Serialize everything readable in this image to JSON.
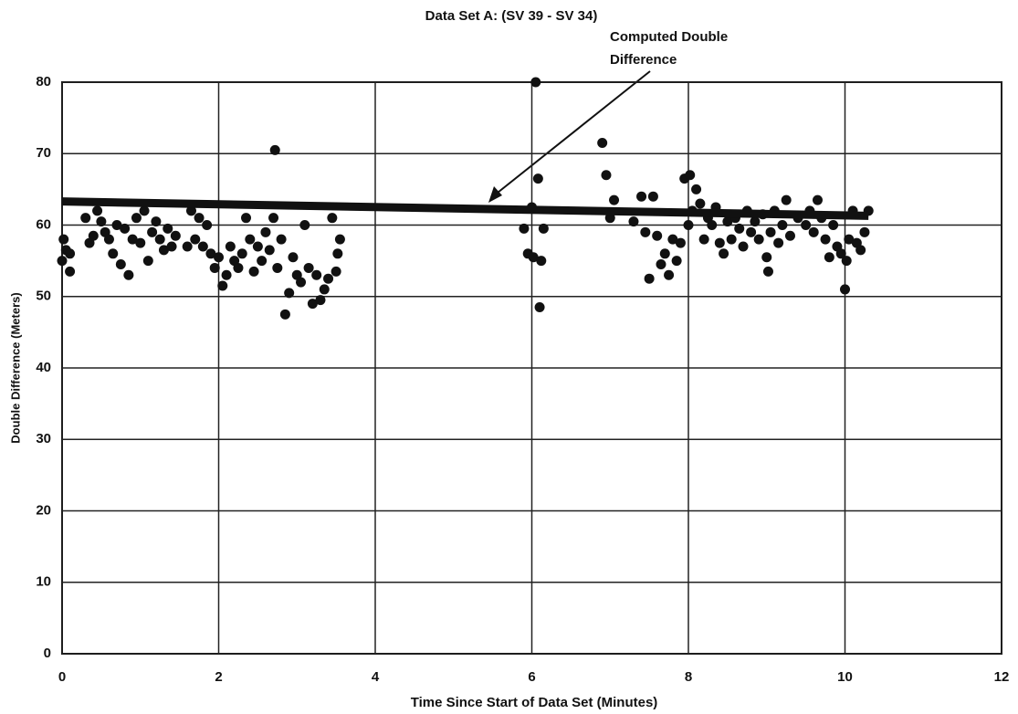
{
  "chart_data": {
    "type": "scatter",
    "title": "Data Set A: (SV 39 - SV 34)",
    "xlabel": "Time Since Start of Data Set (Minutes)",
    "ylabel": "Double Difference (Meters)",
    "annotation": [
      "Computed Double",
      "Difference"
    ],
    "xlim": [
      0,
      12
    ],
    "xticks": [
      0,
      2,
      4,
      6,
      8,
      10,
      12
    ],
    "ylim": [
      0,
      80
    ],
    "yticks": [
      0,
      10,
      20,
      30,
      40,
      50,
      60,
      70,
      80
    ],
    "grid": true,
    "color": "#111111",
    "points": {
      "x": [
        0,
        0.02,
        0.05,
        0.1,
        0.1,
        0.3,
        0.35,
        0.4,
        0.45,
        0.5,
        0.55,
        0.6,
        0.65,
        0.7,
        0.75,
        0.8,
        0.85,
        0.9,
        0.95,
        1.0,
        1.05,
        1.1,
        1.15,
        1.2,
        1.25,
        1.3,
        1.35,
        1.4,
        1.45,
        1.6,
        1.65,
        1.7,
        1.75,
        1.8,
        1.85,
        1.9,
        1.95,
        2.0,
        2.05,
        2.1,
        2.15,
        2.2,
        2.25,
        2.3,
        2.35,
        2.4,
        2.45,
        2.5,
        2.55,
        2.6,
        2.65,
        2.7,
        2.72,
        2.75,
        2.8,
        2.85,
        2.9,
        2.95,
        3.0,
        3.05,
        3.1,
        3.15,
        3.2,
        3.25,
        3.3,
        3.35,
        3.4,
        3.45,
        3.5,
        3.52,
        3.55,
        5.9,
        5.95,
        6.0,
        6.02,
        6.05,
        6.08,
        6.1,
        6.12,
        6.15,
        6.9,
        6.95,
        7.0,
        7.05,
        7.3,
        7.4,
        7.45,
        7.5,
        7.55,
        7.6,
        7.65,
        7.7,
        7.75,
        7.8,
        7.85,
        7.9,
        7.95,
        8.0,
        8.02,
        8.05,
        8.1,
        8.15,
        8.2,
        8.25,
        8.3,
        8.35,
        8.4,
        8.45,
        8.5,
        8.55,
        8.6,
        8.65,
        8.7,
        8.75,
        8.8,
        8.85,
        8.9,
        8.95,
        9.0,
        9.02,
        9.05,
        9.1,
        9.15,
        9.2,
        9.25,
        9.3,
        9.4,
        9.5,
        9.55,
        9.6,
        9.65,
        9.7,
        9.75,
        9.8,
        9.85,
        9.9,
        9.95,
        10.0,
        10.02,
        10.05,
        10.1,
        10.15,
        10.2,
        10.25,
        10.3
      ],
      "y": [
        55,
        58,
        56.5,
        53.5,
        56,
        61,
        57.5,
        58.5,
        62,
        60.5,
        59,
        58,
        56,
        60,
        54.5,
        59.5,
        53,
        58,
        61,
        57.5,
        62,
        55,
        59,
        60.5,
        58,
        56.5,
        59.5,
        57,
        58.5,
        57,
        62,
        58,
        61,
        57,
        60,
        56,
        54,
        55.5,
        51.5,
        53,
        57,
        55,
        54,
        56,
        61,
        58,
        53.5,
        57,
        55,
        59,
        56.5,
        61,
        70.5,
        54,
        58,
        47.5,
        50.5,
        55.5,
        53,
        52,
        60,
        54,
        49,
        53,
        49.5,
        51,
        52.5,
        61,
        53.5,
        56,
        58,
        59.5,
        56,
        62.5,
        55.5,
        80,
        66.5,
        48.5,
        55,
        59.5,
        71.5,
        67,
        61,
        63.5,
        60.5,
        64,
        59,
        52.5,
        64,
        58.5,
        54.5,
        56,
        53,
        58,
        55,
        57.5,
        66.5,
        60,
        67,
        62,
        65,
        63,
        58,
        61,
        60,
        62.5,
        57.5,
        56,
        60.5,
        58,
        61,
        59.5,
        57,
        62,
        59,
        60.5,
        58,
        61.5,
        55.5,
        53.5,
        59,
        62,
        57.5,
        60,
        63.5,
        58.5,
        61,
        60,
        62,
        59,
        63.5,
        61,
        58,
        55.5,
        60,
        57,
        56,
        51,
        55,
        58,
        62,
        57.5,
        56.5,
        59,
        62
      ]
    },
    "fit_line": {
      "x": [
        0,
        10.3
      ],
      "y": [
        63.3,
        61.3
      ]
    }
  }
}
